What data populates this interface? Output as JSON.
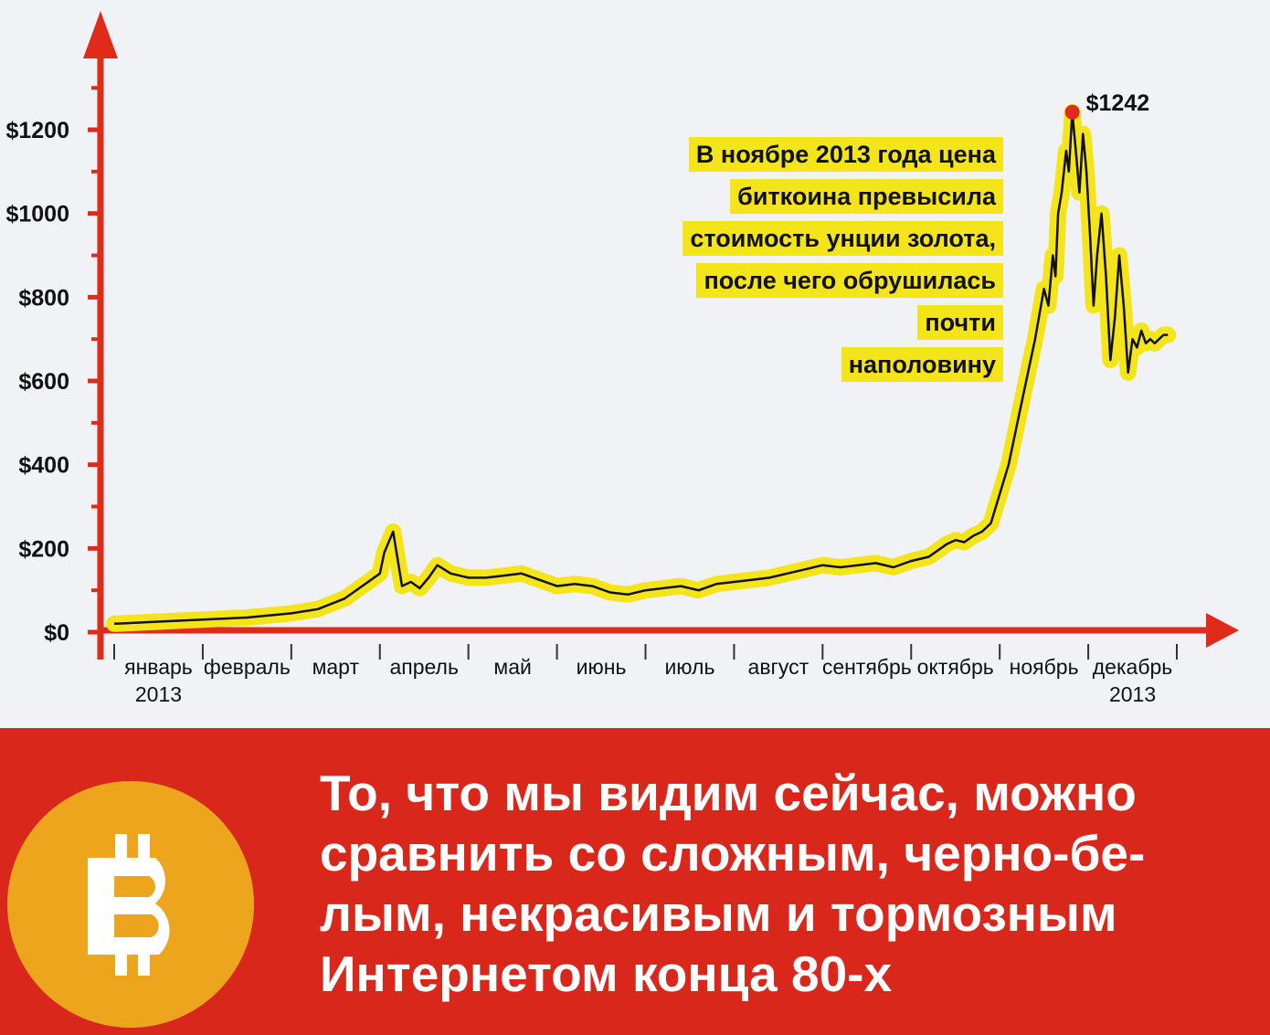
{
  "chart_data": {
    "type": "line",
    "ylim": [
      0,
      1400
    ],
    "y_ticks": [
      0,
      200,
      400,
      600,
      800,
      1000,
      1200
    ],
    "y_tick_labels": [
      "$0",
      "$200",
      "$400",
      "$600",
      "$800",
      "$1000",
      "$1200"
    ],
    "x_domain": [
      0,
      12
    ],
    "month_labels": [
      {
        "line1": "январь",
        "line2": "2013"
      },
      {
        "line1": "февраль"
      },
      {
        "line1": "март"
      },
      {
        "line1": "апрель"
      },
      {
        "line1": "май"
      },
      {
        "line1": "июнь"
      },
      {
        "line1": "июль"
      },
      {
        "line1": "август"
      },
      {
        "line1": "сентябрь"
      },
      {
        "line1": "октябрь"
      },
      {
        "line1": "ноябрь"
      },
      {
        "line1": "декабрь",
        "line2": "2013"
      }
    ],
    "series": [
      {
        "x": [
          0,
          0.5,
          1.0,
          1.5,
          2.0,
          2.3,
          2.6,
          2.8,
          3.0,
          3.05,
          3.15,
          3.25,
          3.35,
          3.45,
          3.55,
          3.65,
          3.8,
          4.0,
          4.2,
          4.4,
          4.6,
          4.8,
          5.0,
          5.2,
          5.4,
          5.6,
          5.8,
          6.0,
          6.2,
          6.4,
          6.6,
          6.8,
          7.0,
          7.2,
          7.4,
          7.6,
          7.8,
          8.0,
          8.2,
          8.4,
          8.6,
          8.8,
          9.0,
          9.2,
          9.4,
          9.5,
          9.6,
          9.7,
          9.8,
          9.9,
          10.0,
          10.1,
          10.2,
          10.3,
          10.4,
          10.5,
          10.55,
          10.6,
          10.63,
          10.66,
          10.7,
          10.75,
          10.78,
          10.82,
          10.86,
          10.9,
          10.94,
          10.98,
          11.02,
          11.06,
          11.1,
          11.15,
          11.2,
          11.25,
          11.3,
          11.35,
          11.4,
          11.45,
          11.5,
          11.55,
          11.6,
          11.65,
          11.7,
          11.75,
          11.8,
          11.85,
          11.9
        ],
        "y": [
          20,
          25,
          30,
          35,
          45,
          55,
          80,
          110,
          140,
          190,
          240,
          110,
          120,
          105,
          130,
          160,
          140,
          130,
          130,
          135,
          140,
          125,
          110,
          115,
          110,
          95,
          90,
          100,
          105,
          110,
          100,
          115,
          120,
          125,
          130,
          140,
          150,
          160,
          155,
          160,
          165,
          155,
          170,
          180,
          210,
          220,
          215,
          230,
          240,
          260,
          330,
          400,
          500,
          600,
          700,
          820,
          780,
          900,
          850,
          1000,
          1050,
          1150,
          1100,
          1242,
          1150,
          1050,
          1190,
          1100,
          950,
          780,
          900,
          1000,
          850,
          650,
          750,
          900,
          780,
          620,
          700,
          680,
          720,
          690,
          700,
          690,
          700,
          710,
          710
        ]
      }
    ],
    "peak_label": "$1242",
    "peak_x": 10.82,
    "peak_y": 1242
  },
  "annotation": [
    "В ноябре 2013 года цена",
    "биткоина превысила",
    "стоимость унции золота,",
    "после чего обрушилась почти",
    "наполовину"
  ],
  "quote": "То, что мы видим сейчас, можно\nсравнить со сложным, черно-бе-\nлым, некрасивым и тормозным\nИнтернетом конца 80-х",
  "bitcoin_icon": "bitcoin-symbol-icon",
  "colors": {
    "axis": "#e02a1a",
    "line": "#111111",
    "highlight": "#f4e41a",
    "peak_dot": "#e02a1a",
    "banner": "#d9271c",
    "logo": "#eda51e"
  }
}
